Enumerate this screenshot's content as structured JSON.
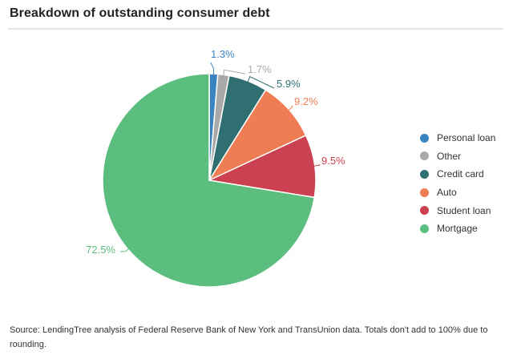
{
  "title": "Breakdown of outstanding consumer debt",
  "source": "Source: LendingTree analysis of Federal Reserve Bank of New York and TransUnion data. Totals don't add to 100% due to rounding.",
  "chart_data": {
    "type": "pie",
    "title": "Breakdown of outstanding consumer debt",
    "legend_position": "right",
    "slices": [
      {
        "name": "Personal loan",
        "value": 1.3,
        "label": "1.3%",
        "color": "#3a83c1"
      },
      {
        "name": "Other",
        "value": 1.7,
        "label": "1.7%",
        "color": "#a9a9a9"
      },
      {
        "name": "Credit card",
        "value": 5.9,
        "label": "5.9%",
        "color": "#2f6f72"
      },
      {
        "name": "Auto",
        "value": 9.2,
        "label": "9.2%",
        "color": "#ef7d54"
      },
      {
        "name": "Student loan",
        "value": 9.5,
        "label": "9.5%",
        "color": "#cc4152"
      },
      {
        "name": "Mortgage",
        "value": 72.5,
        "label": "72.5%",
        "color": "#5bbe7f"
      }
    ]
  }
}
